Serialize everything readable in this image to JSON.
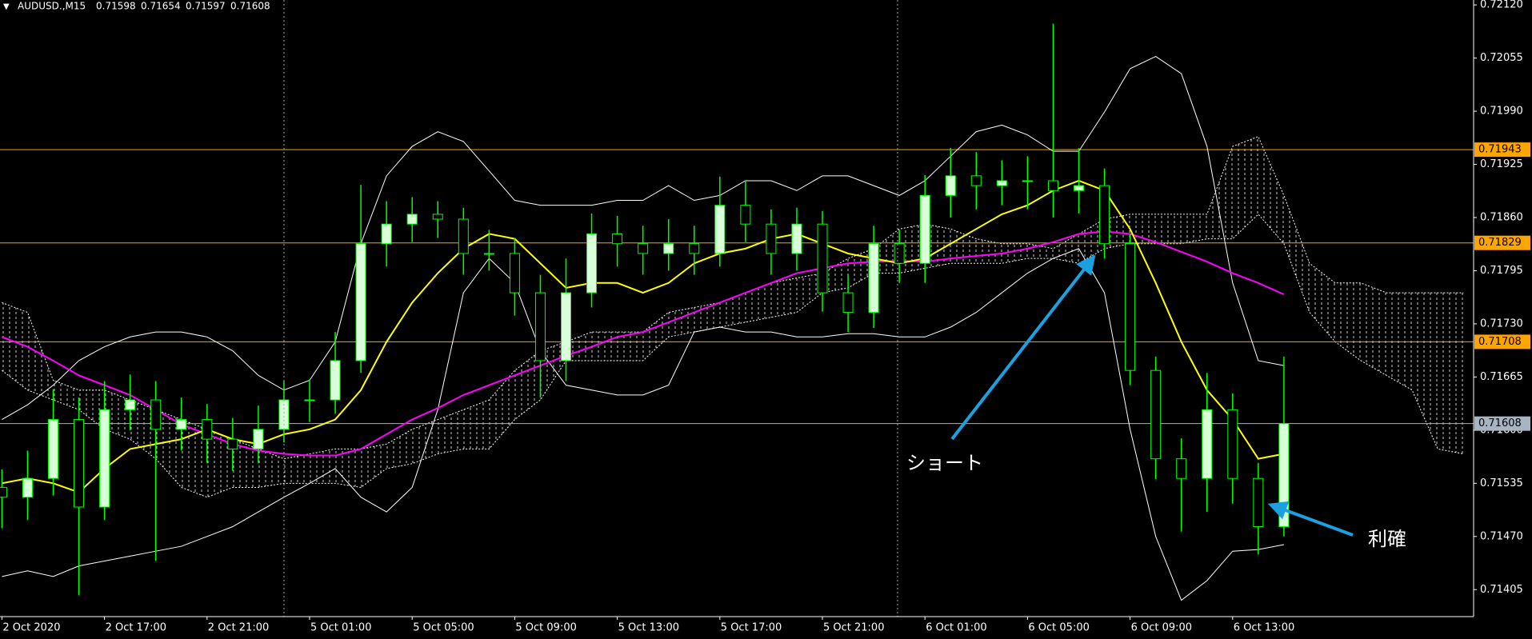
{
  "chart_data": {
    "type": "candlestick",
    "title": "AUDUSD.,M15",
    "ohlc": [
      0.71598,
      0.71654,
      0.71597,
      0.71608
    ],
    "ylim": [
      0.71372,
      0.72126
    ],
    "yticks": [
      {
        "value": 0.7212,
        "label": "0.72120"
      },
      0.72055,
      {
        "value": 0.7199,
        "label": "0.71990"
      },
      0.71925,
      {
        "value": 0.7186,
        "label": "0.71860"
      },
      0.71795,
      {
        "value": 0.7173,
        "label": "0.71730"
      },
      0.71665,
      {
        "value": 0.716,
        "label": "0.71600"
      },
      0.71535,
      {
        "value": 0.7147,
        "label": "0.71470"
      },
      0.71405
    ],
    "categories": [
      "2 Oct 2020",
      null,
      null,
      null,
      "2 Oct 17:00",
      null,
      null,
      null,
      "2 Oct 21:00",
      null,
      null,
      null,
      "5 Oct 01:00",
      null,
      null,
      null,
      "5 Oct 05:00",
      null,
      null,
      null,
      "5 Oct 09:00",
      null,
      null,
      null,
      "5 Oct 13:00",
      null,
      null,
      null,
      "5 Oct 17:00",
      null,
      null,
      null,
      "5 Oct 21:00",
      null,
      null,
      null,
      "6 Oct 01:00",
      null,
      null,
      null,
      "6 Oct 05:00",
      null,
      null,
      null,
      "6 Oct 09:00",
      null,
      null,
      null,
      "6 Oct 13:00",
      null,
      null
    ],
    "open": [
      0.7153,
      0.71518,
      0.71541,
      0.71613,
      0.71506,
      0.71625,
      0.71637,
      0.71601,
      0.71613,
      0.71589,
      0.71577,
      0.71601,
      0.71637,
      0.71637,
      0.71685,
      0.71828,
      0.71852,
      0.71864,
      0.71858,
      0.71816,
      0.71816,
      0.71768,
      0.71685,
      0.71768,
      0.7184,
      0.71828,
      0.71816,
      0.71828,
      0.71816,
      0.71875,
      0.71852,
      0.71816,
      0.71852,
      0.71768,
      0.71744,
      0.71828,
      0.71804,
      0.71887,
      0.71911,
      0.71899,
      0.71905,
      0.71905,
      0.71893,
      0.71899,
      0.71828,
      0.71673,
      0.71565,
      0.71541,
      0.71625,
      0.71541,
      0.71482
    ],
    "high": [
      0.71552,
      0.71575,
      0.7165,
      0.7164,
      0.7166,
      0.71668,
      0.7166,
      0.7164,
      0.71632,
      0.71615,
      0.7163,
      0.7166,
      0.71662,
      0.7172,
      0.719,
      0.7188,
      0.71885,
      0.7188,
      0.71872,
      0.71845,
      0.71835,
      0.7179,
      0.7181,
      0.71865,
      0.71862,
      0.7185,
      0.71858,
      0.7185,
      0.7191,
      0.71905,
      0.7187,
      0.71872,
      0.71868,
      0.7179,
      0.7185,
      0.71845,
      0.71912,
      0.71945,
      0.7194,
      0.7193,
      0.71935,
      0.72097,
      0.71945,
      0.7192,
      0.7184,
      0.7169,
      0.7159,
      0.7167,
      0.71645,
      0.7156,
      0.7169
    ],
    "low": [
      0.7148,
      0.7149,
      0.7152,
      0.71398,
      0.7149,
      0.716,
      0.7144,
      0.71575,
      0.7156,
      0.7155,
      0.7156,
      0.71585,
      0.7161,
      0.7162,
      0.7167,
      0.718,
      0.7183,
      0.71835,
      0.7179,
      0.71795,
      0.7174,
      0.7164,
      0.7166,
      0.7175,
      0.718,
      0.7179,
      0.71795,
      0.7179,
      0.718,
      0.7183,
      0.7179,
      0.71795,
      0.71745,
      0.7172,
      0.71725,
      0.7178,
      0.7178,
      0.7186,
      0.7187,
      0.71875,
      0.7187,
      0.7186,
      0.71865,
      0.7181,
      0.71655,
      0.7154,
      0.71476,
      0.715,
      0.7151,
      0.71448,
      0.7147
    ],
    "close": [
      0.71518,
      0.71541,
      0.71613,
      0.71506,
      0.71625,
      0.71637,
      0.71601,
      0.71613,
      0.71589,
      0.71577,
      0.71601,
      0.71637,
      0.71637,
      0.71685,
      0.71828,
      0.71852,
      0.71864,
      0.71858,
      0.71816,
      0.71816,
      0.71768,
      0.71685,
      0.71768,
      0.7184,
      0.71828,
      0.71816,
      0.71828,
      0.71816,
      0.71875,
      0.71852,
      0.71816,
      0.71852,
      0.71768,
      0.71744,
      0.71828,
      0.71804,
      0.71887,
      0.71911,
      0.71899,
      0.71905,
      0.71905,
      0.71893,
      0.71899,
      0.71828,
      0.71673,
      0.71565,
      0.71541,
      0.71625,
      0.71541,
      0.71482,
      0.71608
    ],
    "up_color": "#d8ffd8",
    "down_color": "#000000",
    "wick_color": "#00ff00",
    "lines": [
      {
        "color": "#ffffff",
        "values": [
          0.71613,
          0.71631,
          0.71655,
          0.71685,
          0.71702,
          0.71714,
          0.7172,
          0.7172,
          0.71714,
          0.71697,
          0.71667,
          0.71649,
          0.71661,
          0.71708,
          0.71828,
          0.71911,
          0.71947,
          0.71965,
          0.71953,
          0.71917,
          0.71881,
          0.71875,
          0.71875,
          0.71875,
          0.71881,
          0.71881,
          0.71899,
          0.71881,
          0.71887,
          0.71905,
          0.71905,
          0.71893,
          0.71911,
          0.71911,
          0.71899,
          0.71887,
          0.71905,
          0.71935,
          0.71965,
          0.71973,
          0.71961,
          0.71941,
          0.71941,
          0.71989,
          0.72042,
          0.72057,
          0.72036,
          0.71947,
          0.7178,
          0.71685,
          0.71679
        ]
      },
      {
        "color": "#ffffff",
        "values": [
          0.71421,
          0.71428,
          0.71421,
          0.71434,
          0.7144,
          0.71446,
          0.71452,
          0.71458,
          0.7147,
          0.71482,
          0.715,
          0.71518,
          0.71535,
          0.71553,
          0.71518,
          0.715,
          0.7153,
          0.71625,
          0.71768,
          0.7181,
          0.7178,
          0.71697,
          0.71655,
          0.71649,
          0.71643,
          0.71643,
          0.71655,
          0.7172,
          0.71726,
          0.7172,
          0.7172,
          0.71714,
          0.71714,
          0.71718,
          0.71718,
          0.71714,
          0.71714,
          0.71726,
          0.71744,
          0.71768,
          0.71792,
          0.7181,
          0.71822,
          0.71768,
          0.71601,
          0.7147,
          0.71392,
          0.71416,
          0.71452,
          0.71454,
          0.7146
        ]
      },
      {
        "color": "#ff00ff",
        "values": [
          0.71714,
          0.71702,
          0.71685,
          0.71667,
          0.71655,
          0.71643,
          0.71625,
          0.71607,
          0.71595,
          0.71583,
          0.71575,
          0.71571,
          0.71569,
          0.71569,
          0.71577,
          0.71595,
          0.71613,
          0.71627,
          0.71643,
          0.71655,
          0.71667,
          0.71679,
          0.71691,
          0.71702,
          0.71714,
          0.7172,
          0.71732,
          0.71744,
          0.71756,
          0.71768,
          0.7178,
          0.71792,
          0.71798,
          0.71804,
          0.71806,
          0.71807,
          0.71806,
          0.7181,
          0.71813,
          0.71816,
          0.71822,
          0.7183,
          0.7184,
          0.71843,
          0.7184,
          0.7183,
          0.71818,
          0.71806,
          0.71792,
          0.7178,
          0.71766
        ]
      },
      {
        "color": "#ffff00",
        "values": [
          0.71535,
          0.71541,
          0.71535,
          0.71524,
          0.71553,
          0.71577,
          0.71583,
          0.71589,
          0.71601,
          0.71589,
          0.71583,
          0.71595,
          0.71601,
          0.71613,
          0.71649,
          0.71708,
          0.71756,
          0.71792,
          0.71822,
          0.7184,
          0.71834,
          0.71804,
          0.71774,
          0.7178,
          0.7178,
          0.71768,
          0.7178,
          0.71804,
          0.71816,
          0.71822,
          0.71834,
          0.7184,
          0.71828,
          0.71816,
          0.7181,
          0.71804,
          0.7181,
          0.71828,
          0.71846,
          0.71864,
          0.71875,
          0.71893,
          0.71905,
          0.71893,
          0.71846,
          0.7178,
          0.71708,
          0.71649,
          0.71613,
          0.71565,
          0.71571
        ]
      }
    ],
    "cloud": {
      "color": "#ffffff",
      "upper": [
        0.71756,
        0.71744,
        0.71661,
        0.71649,
        0.71649,
        0.71637,
        0.71625,
        0.71613,
        0.71601,
        0.71589,
        0.71577,
        0.71565,
        0.71571,
        0.71577,
        0.71577,
        0.71583,
        0.71601,
        0.71613,
        0.71625,
        0.71637,
        0.71673,
        0.71697,
        0.71708,
        0.7172,
        0.7172,
        0.7172,
        0.71744,
        0.7175,
        0.71756,
        0.71768,
        0.7178,
        0.71786,
        0.71792,
        0.7181,
        0.71822,
        0.71846,
        0.71852,
        0.71846,
        0.71834,
        0.71828,
        0.71828,
        0.71822,
        0.7184,
        0.71858,
        0.71864,
        0.71864,
        0.71864,
        0.71864,
        0.71947,
        0.71959,
        0.71887,
        0.71804,
        0.7178,
        0.7178,
        0.71768,
        0.71768,
        0.71768,
        0.71768
      ],
      "lower": [
        0.71673,
        0.71649,
        0.71637,
        0.71625,
        0.71601,
        0.71589,
        0.71565,
        0.7153,
        0.71518,
        0.7153,
        0.7153,
        0.71535,
        0.71535,
        0.71535,
        0.7153,
        0.71553,
        0.71559,
        0.71571,
        0.71577,
        0.71577,
        0.71613,
        0.71637,
        0.71685,
        0.71685,
        0.71685,
        0.71685,
        0.71714,
        0.7172,
        0.71726,
        0.71732,
        0.71738,
        0.71744,
        0.71768,
        0.71774,
        0.71792,
        0.71792,
        0.71798,
        0.71804,
        0.71804,
        0.71804,
        0.7181,
        0.7181,
        0.71804,
        0.71822,
        0.71828,
        0.71828,
        0.71828,
        0.71834,
        0.71834,
        0.71864,
        0.71828,
        0.71744,
        0.71708,
        0.71685,
        0.71667,
        0.71649,
        0.71577,
        0.71571
      ]
    },
    "levels": [
      {
        "value": 0.71943,
        "color": "#ffa500"
      },
      {
        "value": 0.71829,
        "color": "#ffa500"
      },
      {
        "value": 0.71708,
        "color": "#ffa500"
      },
      {
        "value": 0.71608,
        "color": "#a9b4c2"
      }
    ],
    "annotations": [
      "ショート",
      "利確"
    ]
  }
}
